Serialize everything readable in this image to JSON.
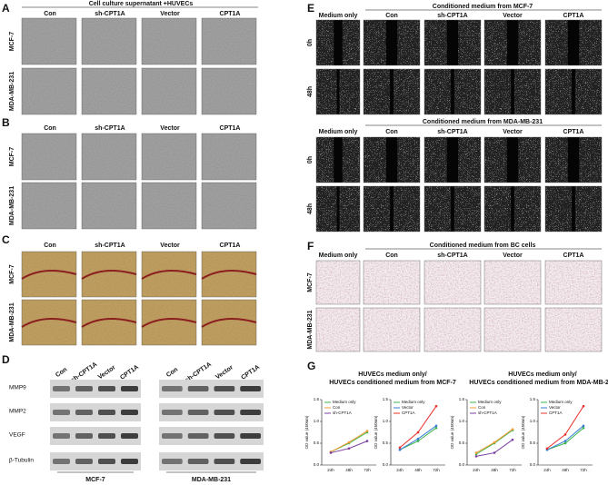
{
  "panels": [
    {
      "label": "A",
      "title": "Cell culture supernatant +HUVECs",
      "columns": [
        "Con",
        "sh-CPT1A",
        "Vector",
        "CPT1A"
      ],
      "rows": [
        "MCF-7",
        "MDA-MB-231"
      ]
    },
    {
      "label": "B",
      "columns": [
        "Con",
        "sh-CPT1A",
        "Vector",
        "CPT1A"
      ],
      "rows": [
        "MCF-7",
        "MDA-MB-231"
      ]
    },
    {
      "label": "C",
      "columns": [
        "Con",
        "sh-CPT1A",
        "Vector",
        "CPT1A"
      ],
      "rows": [
        "MCF-7",
        "MDA-MB-231"
      ]
    },
    {
      "label": "D",
      "rows": [
        "MMP9",
        "MMP2",
        "VEGF",
        "β-Tubulin"
      ],
      "groups": [
        {
          "name": "MCF-7",
          "columns": [
            "Con",
            "sh-CPT1A",
            "Vector",
            "CPT1A"
          ]
        },
        {
          "name": "MDA-MB-231",
          "columns": [
            "Con",
            "sh-CPT1A",
            "Vector",
            "CPT1A"
          ]
        }
      ]
    },
    {
      "label": "E",
      "sections": [
        {
          "title": "Conditioned medium from MCF-7",
          "columns": [
            "Medium only",
            "Con",
            "sh-CPT1A",
            "Vector",
            "CPT1A"
          ],
          "rows": [
            "0h",
            "48h"
          ]
        },
        {
          "title": "Conditioned medium from MDA-MB-231",
          "columns": [
            "Medium only",
            "Con",
            "sh-CPT1A",
            "Vector",
            "CPT1A"
          ],
          "rows": [
            "0h",
            "48h"
          ]
        }
      ]
    },
    {
      "label": "F",
      "title": "Conditioned medium from BC cells",
      "columns": [
        "Medium only",
        "Con",
        "sh-CPT1A",
        "Vector",
        "CPT1A"
      ],
      "rows": [
        "MCF-7",
        "MDA-MB-231"
      ]
    },
    {
      "label": "G",
      "groups": [
        {
          "title_lines": [
            "HUVECs medium only/",
            "HUVECs conditioned medium from MCF-7"
          ]
        },
        {
          "title_lines": [
            "HUVECs medium only/",
            "HUVECs conditioned medium from MDA-MB-231"
          ]
        }
      ]
    }
  ],
  "chart_data": [
    {
      "type": "line",
      "y_label": "OD value (450nm)",
      "categories": [
        "24h",
        "48h",
        "72h"
      ],
      "ylim": [
        0,
        1.5
      ],
      "yticks": [
        {
          "value": 0,
          "label": "0.0"
        },
        {
          "value": 0.5,
          "label": "0.5"
        },
        {
          "value": 1,
          "label": "1.0"
        },
        {
          "value": 1.5,
          "label": "1.5"
        }
      ],
      "series": [
        {
          "name": "Medium only",
          "color": "#3cb44b",
          "values": [
            0.3,
            0.5,
            0.75
          ]
        },
        {
          "name": "Con",
          "color": "#f39c34",
          "values": [
            0.3,
            0.52,
            0.78
          ]
        },
        {
          "name": "sh-CPT1A",
          "color": "#7b3fa0",
          "values": [
            0.28,
            0.38,
            0.55
          ]
        }
      ]
    },
    {
      "type": "line",
      "y_label": "OD value (450nm)",
      "categories": [
        "24h",
        "48h",
        "72h"
      ],
      "ylim": [
        0,
        1.5
      ],
      "yticks": [
        {
          "value": 0,
          "label": "0.0"
        },
        {
          "value": 0.5,
          "label": "0.5"
        },
        {
          "value": 1,
          "label": "1.0"
        },
        {
          "value": 1.5,
          "label": "1.5"
        }
      ],
      "series": [
        {
          "name": "Medium only",
          "color": "#3cb44b",
          "values": [
            0.35,
            0.55,
            0.85
          ]
        },
        {
          "name": "Vector",
          "color": "#3a7bd5",
          "values": [
            0.35,
            0.6,
            0.9
          ]
        },
        {
          "name": "CPT1A",
          "color": "#e8302a",
          "values": [
            0.4,
            0.75,
            1.35
          ]
        }
      ]
    },
    {
      "type": "line",
      "y_label": "OD value (450nm)",
      "categories": [
        "24h",
        "48h",
        "72h"
      ],
      "ylim": [
        0,
        1.5
      ],
      "yticks": [
        {
          "value": 0,
          "label": "0.0"
        },
        {
          "value": 0.5,
          "label": "0.5"
        },
        {
          "value": 1,
          "label": "1.0"
        },
        {
          "value": 1.5,
          "label": "1.5"
        }
      ],
      "series": [
        {
          "name": "Medium only",
          "color": "#3cb44b",
          "values": [
            0.25,
            0.5,
            0.8
          ]
        },
        {
          "name": "Con",
          "color": "#f39c34",
          "values": [
            0.28,
            0.52,
            0.82
          ]
        },
        {
          "name": "sh-CPT1A",
          "color": "#7b3fa0",
          "values": [
            0.2,
            0.28,
            0.58
          ]
        }
      ]
    },
    {
      "type": "line",
      "y_label": "OD value (450nm)",
      "categories": [
        "24h",
        "48h",
        "72h"
      ],
      "ylim": [
        0,
        1.5
      ],
      "yticks": [
        {
          "value": 0,
          "label": "0.0"
        },
        {
          "value": 0.5,
          "label": "0.5"
        },
        {
          "value": 1,
          "label": "1.0"
        },
        {
          "value": 1.5,
          "label": "1.5"
        }
      ],
      "series": [
        {
          "name": "Medium only",
          "color": "#3cb44b",
          "values": [
            0.35,
            0.5,
            0.85
          ]
        },
        {
          "name": "Vector",
          "color": "#3a7bd5",
          "values": [
            0.35,
            0.55,
            0.9
          ]
        },
        {
          "name": "CPT1A",
          "color": "#e8302a",
          "values": [
            0.38,
            0.7,
            1.35
          ]
        }
      ]
    }
  ]
}
